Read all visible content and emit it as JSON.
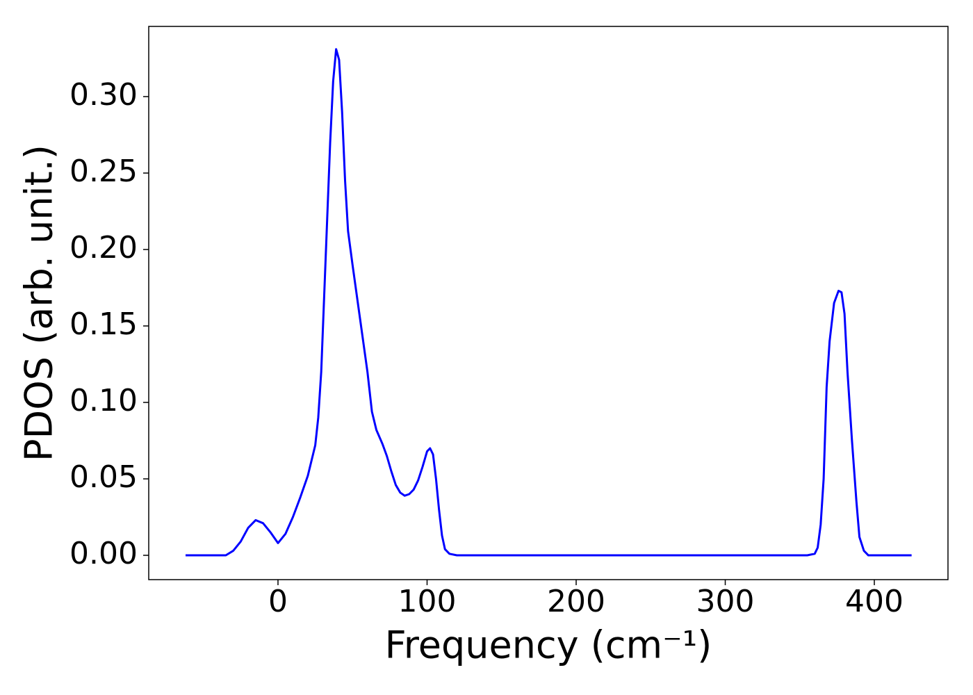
{
  "chart_data": {
    "type": "line",
    "xlabel": "Frequency (cm⁻¹)",
    "ylabel": "PDOS (arb. unit.)",
    "x": [
      -62,
      -35,
      -30,
      -25,
      -20,
      -15,
      -10,
      -5,
      0,
      5,
      10,
      15,
      20,
      25,
      27,
      29,
      31,
      33,
      35,
      37,
      39,
      41,
      43,
      45,
      47,
      50,
      55,
      60,
      63,
      66,
      70,
      73,
      76,
      79,
      82,
      85,
      88,
      91,
      94,
      97,
      100,
      102,
      104,
      106,
      108,
      110,
      112,
      115,
      120,
      355,
      360,
      362,
      364,
      366,
      368,
      370,
      373,
      376,
      378,
      380,
      382,
      385,
      388,
      390,
      393,
      396,
      425
    ],
    "series": [
      {
        "name": "PDOS",
        "color": "#0000ff",
        "values": [
          0,
          0,
          0.003,
          0.009,
          0.018,
          0.023,
          0.021,
          0.015,
          0.008,
          0.014,
          0.025,
          0.038,
          0.052,
          0.072,
          0.09,
          0.12,
          0.17,
          0.22,
          0.27,
          0.31,
          0.331,
          0.324,
          0.29,
          0.245,
          0.212,
          0.19,
          0.155,
          0.12,
          0.094,
          0.082,
          0.073,
          0.065,
          0.055,
          0.046,
          0.041,
          0.039,
          0.04,
          0.043,
          0.049,
          0.058,
          0.068,
          0.07,
          0.066,
          0.05,
          0.03,
          0.013,
          0.004,
          0.001,
          0,
          0,
          0.001,
          0.005,
          0.02,
          0.05,
          0.11,
          0.14,
          0.165,
          0.173,
          0.172,
          0.158,
          0.12,
          0.075,
          0.035,
          0.012,
          0.003,
          0,
          0
        ]
      }
    ],
    "xlim": [
      -86.7,
      449.4
    ],
    "ylim": [
      -0.0159,
      0.3459
    ],
    "xticks": [
      0,
      100,
      200,
      300,
      400
    ],
    "yticks": [
      {
        "value": 0,
        "label": "0.00"
      },
      0.05,
      {
        "value": 0.1,
        "label": "0.10"
      },
      0.15,
      {
        "value": 0.2,
        "label": "0.20"
      },
      0.25,
      {
        "value": 0.3,
        "label": "0.30"
      }
    ],
    "grid": false
  }
}
